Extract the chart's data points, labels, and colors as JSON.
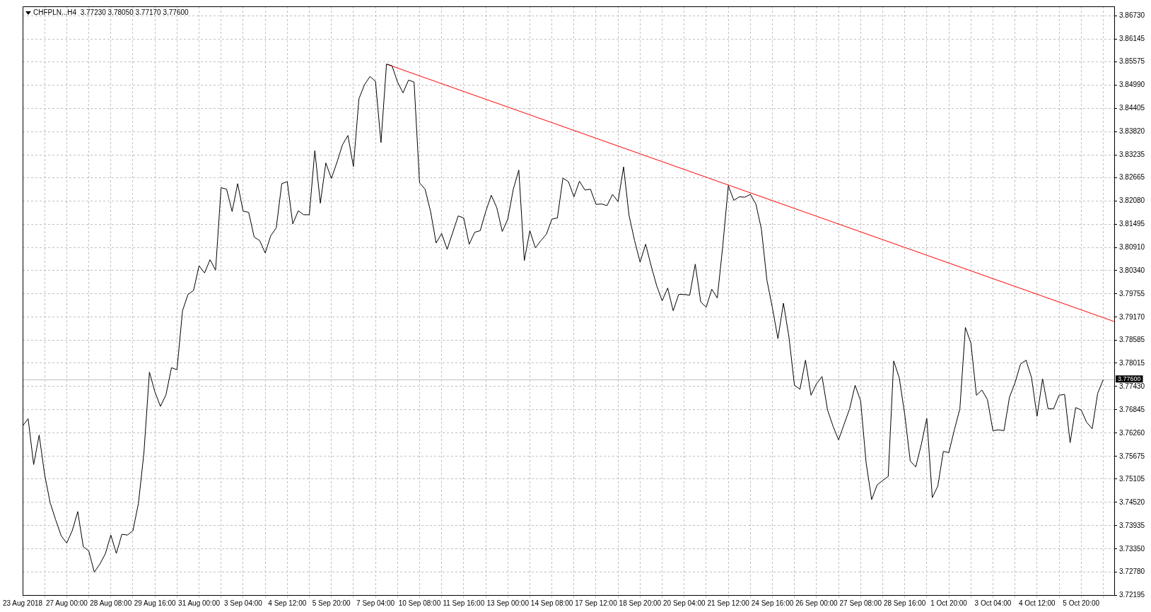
{
  "chart_data": {
    "type": "line",
    "title": "CHFPLN...H4  3.77230 3.78050 3.77170 3.77600",
    "categories": [
      "23 Aug 2018",
      null,
      null,
      null,
      null,
      null,
      null,
      null,
      "27 Aug 00:00",
      null,
      null,
      null,
      null,
      null,
      null,
      null,
      "28 Aug 08:00",
      null,
      null,
      null,
      null,
      null,
      null,
      null,
      "29 Aug 16:00",
      null,
      null,
      null,
      null,
      null,
      null,
      null,
      "31 Aug 00:00",
      null,
      null,
      null,
      null,
      null,
      null,
      null,
      "3 Sep 04:00",
      null,
      null,
      null,
      null,
      null,
      null,
      null,
      "4 Sep 12:00",
      null,
      null,
      null,
      null,
      null,
      null,
      null,
      "5 Sep 20:00",
      null,
      null,
      null,
      null,
      null,
      null,
      null,
      "7 Sep 04:00",
      null,
      null,
      null,
      null,
      null,
      null,
      null,
      "10 Sep 08:00",
      null,
      null,
      null,
      null,
      null,
      null,
      null,
      "11 Sep 16:00",
      null,
      null,
      null,
      null,
      null,
      null,
      null,
      "13 Sep 00:00",
      null,
      null,
      null,
      null,
      null,
      null,
      null,
      "14 Sep 08:00",
      null,
      null,
      null,
      null,
      null,
      null,
      null,
      "17 Sep 12:00",
      null,
      null,
      null,
      null,
      null,
      null,
      null,
      "18 Sep 20:00",
      null,
      null,
      null,
      null,
      null,
      null,
      null,
      "20 Sep 04:00",
      null,
      null,
      null,
      null,
      null,
      null,
      null,
      "21 Sep 12:00",
      null,
      null,
      null,
      null,
      null,
      null,
      null,
      "24 Sep 16:00",
      null,
      null,
      null,
      null,
      null,
      null,
      null,
      "26 Sep 00:00",
      null,
      null,
      null,
      null,
      null,
      null,
      null,
      "27 Sep 08:00",
      null,
      null,
      null,
      null,
      null,
      null,
      null,
      "28 Sep 16:00",
      null,
      null,
      null,
      null,
      null,
      null,
      null,
      "1 Oct 20:00",
      null,
      null,
      null,
      null,
      null,
      null,
      null,
      "3 Oct 04:00",
      null,
      null,
      null,
      null,
      null,
      null,
      null,
      "4 Oct 12:00",
      null,
      null,
      null,
      null,
      null,
      null,
      null,
      "5 Oct 20:00",
      null,
      null,
      null,
      null,
      null,
      null
    ],
    "series": [
      {
        "color": "#000000",
        "values": [
          3.7644,
          3.7662,
          3.7547,
          3.7621,
          3.7521,
          3.7451,
          3.7408,
          3.7368,
          3.735,
          3.7381,
          3.7429,
          3.7341,
          3.733,
          3.7277,
          3.7297,
          3.7323,
          3.737,
          3.7324,
          3.7372,
          3.737,
          3.7381,
          3.7449,
          3.7576,
          3.7779,
          3.7729,
          3.7693,
          3.7722,
          3.779,
          3.7785,
          3.7933,
          3.7974,
          3.7984,
          3.8046,
          3.8028,
          3.8061,
          3.8035,
          3.8242,
          3.8238,
          3.8182,
          3.8252,
          3.8183,
          3.818,
          3.8118,
          3.8109,
          3.8078,
          3.8121,
          3.8141,
          3.8252,
          3.8257,
          3.8151,
          3.8184,
          3.8174,
          3.8174,
          3.8335,
          3.8203,
          3.8304,
          3.8265,
          3.8305,
          3.8349,
          3.8373,
          3.8295,
          3.8465,
          3.85,
          3.8521,
          3.8509,
          3.8355,
          3.8552,
          3.8548,
          3.8507,
          3.848,
          3.8512,
          3.8507,
          3.8254,
          3.8238,
          3.8182,
          3.8103,
          3.8127,
          3.8087,
          3.8129,
          3.8171,
          3.8166,
          3.81,
          3.813,
          3.8134,
          3.8182,
          3.8223,
          3.8192,
          3.8132,
          3.8163,
          3.8238,
          3.8286,
          3.8059,
          3.8134,
          3.8091,
          3.8109,
          3.8125,
          3.8163,
          3.8166,
          3.8266,
          3.8257,
          3.8219,
          3.8258,
          3.8236,
          3.8238,
          3.82,
          3.8201,
          3.8197,
          3.8225,
          3.8207,
          3.8294,
          3.8172,
          3.8109,
          3.8055,
          3.81,
          3.8046,
          3.7996,
          3.7958,
          3.799,
          3.7933,
          3.7974,
          3.7974,
          3.7972,
          3.805,
          3.7955,
          3.7942,
          3.7987,
          3.7965,
          3.8096,
          3.8247,
          3.821,
          3.8219,
          3.8218,
          3.8225,
          3.8201,
          3.8138,
          3.801,
          3.794,
          3.7863,
          3.7952,
          3.7867,
          3.7746,
          3.7736,
          3.7809,
          3.7721,
          3.775,
          3.7768,
          3.7684,
          3.7643,
          3.7609,
          3.7648,
          3.7687,
          3.7746,
          3.7707,
          3.7551,
          3.7459,
          3.7496,
          3.7507,
          3.7517,
          3.7807,
          3.7765,
          3.7673,
          3.7556,
          3.7541,
          3.7597,
          3.7663,
          3.7464,
          3.7493,
          3.758,
          3.7577,
          3.7634,
          3.7687,
          3.7891,
          3.7852,
          3.7721,
          3.7734,
          3.771,
          3.7632,
          3.7634,
          3.7632,
          3.7716,
          3.7752,
          3.7799,
          3.7809,
          3.7765,
          3.7668,
          3.7762,
          3.7687,
          3.7687,
          3.7721,
          3.7723,
          3.7602,
          3.769,
          3.7684,
          3.7653,
          3.7637,
          3.7726,
          3.776,
          null,
          null
        ]
      },
      {
        "type": "line",
        "color": "#ff0000",
        "values": [
          null,
          null,
          null,
          null,
          null,
          null,
          null,
          null,
          null,
          null,
          null,
          null,
          null,
          null,
          null,
          null,
          null,
          null,
          null,
          null,
          null,
          null,
          null,
          null,
          null,
          null,
          null,
          null,
          null,
          null,
          null,
          null,
          null,
          null,
          null,
          null,
          null,
          null,
          null,
          null,
          null,
          null,
          null,
          null,
          null,
          null,
          null,
          null,
          null,
          null,
          null,
          null,
          null,
          null,
          null,
          null,
          null,
          null,
          null,
          null,
          null,
          null,
          null,
          null,
          null,
          null,
          3.8552,
          null,
          null,
          null,
          null,
          null,
          null,
          null,
          null,
          null,
          null,
          null,
          null,
          null,
          null,
          null,
          null,
          null,
          null,
          null,
          null,
          null,
          null,
          null,
          null,
          null,
          null,
          null,
          null,
          null,
          null,
          null,
          null,
          null,
          null,
          null,
          null,
          null,
          null,
          null,
          null,
          null,
          null,
          null,
          null,
          null,
          null,
          null,
          null,
          null,
          null,
          null,
          null,
          null,
          null,
          null,
          null,
          null,
          null,
          null,
          null,
          null,
          null,
          null,
          null,
          null,
          null,
          null,
          null,
          null,
          null,
          null,
          null,
          null,
          null,
          null,
          null,
          null,
          null,
          null,
          null,
          null,
          null,
          null,
          null,
          null,
          null,
          null,
          null,
          null,
          null,
          null,
          null,
          null,
          null,
          null,
          null,
          null,
          null,
          null,
          null,
          null,
          null,
          null,
          null,
          null,
          null,
          null,
          null,
          null,
          null,
          null,
          null,
          null,
          null,
          null,
          null,
          null,
          null,
          null,
          null,
          null,
          null,
          null,
          null,
          null,
          null,
          null,
          null,
          null,
          null,
          null,
          3.7906
        ]
      }
    ],
    "ylim": [
      3.72195,
      3.8697
    ],
    "yticks": [
      {
        "value": 3.72195,
        "label": "3.72195"
      },
      {
        "value": 3.7278,
        "label": "3.72780"
      },
      {
        "value": 3.7335,
        "label": "3.73350"
      },
      {
        "value": 3.73935,
        "label": "3.73935"
      },
      {
        "value": 3.7452,
        "label": "3.74520"
      },
      {
        "value": 3.75105,
        "label": "3.75105"
      },
      {
        "value": 3.75675,
        "label": "3.75675"
      },
      {
        "value": 3.7626,
        "label": "3.76260"
      },
      {
        "value": 3.76845,
        "label": "3.76845"
      },
      {
        "value": 3.7743,
        "label": "3.77430"
      },
      {
        "value": 3.78015,
        "label": "3.78015"
      },
      {
        "value": 3.78585,
        "label": "3.78585"
      },
      {
        "value": 3.7917,
        "label": "3.79170"
      },
      {
        "value": 3.79755,
        "label": "3.79755"
      },
      {
        "value": 3.8034,
        "label": "3.80340"
      },
      {
        "value": 3.8091,
        "label": "3.80910"
      },
      {
        "value": 3.81495,
        "label": "3.81495"
      },
      {
        "value": 3.8208,
        "label": "3.82080"
      },
      {
        "value": 3.82665,
        "label": "3.82665"
      },
      {
        "value": 3.83235,
        "label": "3.83235"
      },
      {
        "value": 3.8382,
        "label": "3.83820"
      },
      {
        "value": 3.84405,
        "label": "3.84405"
      },
      {
        "value": 3.8499,
        "label": "3.84990"
      },
      {
        "value": 3.85575,
        "label": "3.85575"
      },
      {
        "value": 3.86145,
        "label": "3.86145"
      },
      {
        "value": 3.8673,
        "label": "3.86730"
      }
    ],
    "ref_lines": [
      {
        "axis": "y",
        "value": 3.776,
        "label": "3.77600",
        "color": "#c0c0c0"
      }
    ],
    "grid": true,
    "legend": false,
    "marker": "none",
    "line_style": "solid"
  }
}
